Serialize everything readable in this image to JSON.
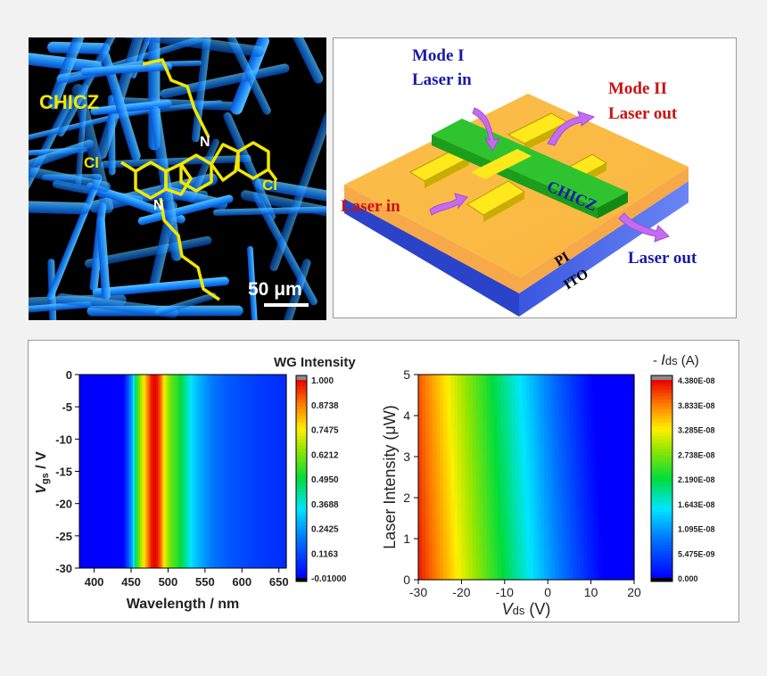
{
  "micrograph": {
    "compound_label": "CHICZ",
    "cl_left": "Cl",
    "cl_right": "Cl",
    "n_top": "N",
    "n_bottom": "N",
    "scale_bar": "50 μm"
  },
  "device": {
    "mode1": "Mode I",
    "laser_in_top": "Laser in",
    "mode2": "Mode II",
    "laser_out_top": "Laser out",
    "laser_in_left": "Laser in",
    "chicz": "CHICZ",
    "pi": "PI",
    "ito": "ITO",
    "laser_out_right": "Laser out"
  },
  "chart_data": [
    {
      "type": "heatmap",
      "title": "WG Intensity",
      "xlabel": "Wavelength / nm",
      "ylabel_main": "V",
      "ylabel_sub": "gs",
      "ylabel_unit": " / V",
      "xlim": [
        380,
        660
      ],
      "ylim": [
        -30,
        0
      ],
      "xticks": [
        "400",
        "450",
        "500",
        "550",
        "600",
        "650"
      ],
      "yticks": [
        "0",
        "-5",
        "-10",
        "-15",
        "-20",
        "-25",
        "-30"
      ],
      "colorbar_ticks": [
        "1.000",
        "0.8738",
        "0.7475",
        "0.6212",
        "0.4950",
        "0.3688",
        "0.2425",
        "0.1163",
        "-0.01000"
      ],
      "peak_wavelength": 482,
      "profile": [
        [
          380,
          0.0
        ],
        [
          440,
          0.0
        ],
        [
          452,
          0.28
        ],
        [
          458,
          0.55
        ],
        [
          466,
          0.72
        ],
        [
          472,
          0.86
        ],
        [
          478,
          0.98
        ],
        [
          484,
          1.0
        ],
        [
          490,
          0.9
        ],
        [
          496,
          0.72
        ],
        [
          504,
          0.6
        ],
        [
          512,
          0.55
        ],
        [
          522,
          0.45
        ],
        [
          532,
          0.34
        ],
        [
          542,
          0.28
        ],
        [
          560,
          0.2
        ],
        [
          580,
          0.15
        ],
        [
          620,
          0.1
        ],
        [
          660,
          0.07
        ]
      ]
    },
    {
      "type": "heatmap",
      "title": "- Ids (A)",
      "title_parts": [
        "- ",
        "I",
        "ds",
        " (A)"
      ],
      "xlabel": "Vds (V)",
      "xlabel_parts": [
        "V",
        "ds",
        "  (V)"
      ],
      "ylabel": "Laser Intensity (μW)",
      "xlim": [
        -30,
        20
      ],
      "ylim": [
        0,
        5
      ],
      "xticks": [
        "-30",
        "-20",
        "-10",
        "0",
        "10",
        "20"
      ],
      "yticks": [
        "0",
        "1",
        "2",
        "3",
        "4",
        "5"
      ],
      "colorbar_ticks": [
        "4.380E-08",
        "3.833E-08",
        "3.285E-08",
        "2.738E-08",
        "2.190E-08",
        "1.643E-08",
        "1.095E-08",
        "5.475E-09",
        "0.000"
      ]
    }
  ],
  "colors": {
    "accent_yellow": "#f2e600",
    "red_label": "#cc1111",
    "blue_label": "#1a1aa8",
    "fiber_blue": "#1a8fff"
  }
}
